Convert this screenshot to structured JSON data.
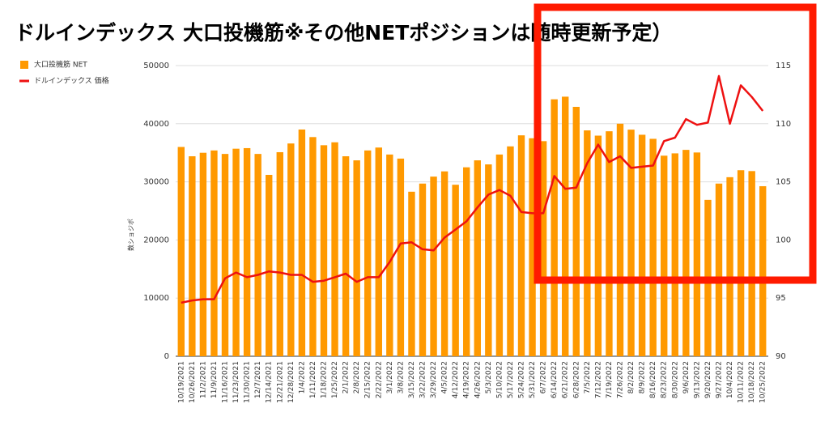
{
  "chart_data": {
    "type": "bar",
    "title": "ドルインデックス 大口投機筋※その他NETポジションは随時更新予定）",
    "y_label": "数ショジポ",
    "categories": [
      "10/19/2021",
      "10/26/2021",
      "11/2/2021",
      "11/9/2021",
      "11/16/2021",
      "11/23/2021",
      "11/30/2021",
      "12/7/2021",
      "12/14/2021",
      "12/21/2021",
      "12/28/2021",
      "1/4/2022",
      "1/11/2022",
      "1/18/2022",
      "1/25/2022",
      "2/1/2022",
      "2/8/2022",
      "2/15/2022",
      "2/22/2022",
      "3/1/2022",
      "3/8/2022",
      "3/15/2022",
      "3/22/2022",
      "3/29/2022",
      "4/5/2022",
      "4/12/2022",
      "4/19/2022",
      "4/26/2022",
      "5/3/2022",
      "5/10/2022",
      "5/17/2022",
      "5/24/2022",
      "5/31/2022",
      "6/7/2022",
      "6/14/2022",
      "6/21/2022",
      "6/28/2022",
      "7/5/2022",
      "7/12/2022",
      "7/19/2022",
      "7/26/2022",
      "8/2/2022",
      "8/9/2022",
      "8/16/2022",
      "8/23/2022",
      "8/30/2022",
      "9/6/2022",
      "9/13/2022",
      "9/20/2022",
      "9/27/2022",
      "10/4/2022",
      "10/11/2022",
      "10/18/2022",
      "10/25/2022"
    ],
    "series": [
      {
        "name": "大口投機筋  NET",
        "color": "#ff9900",
        "type": "bar",
        "values": [
          36000,
          34400,
          35000,
          35400,
          34800,
          35700,
          35800,
          34800,
          31200,
          35100,
          36600,
          39000,
          37700,
          36300,
          36800,
          34400,
          33700,
          35400,
          35900,
          34700,
          34000,
          28300,
          29700,
          30900,
          31800,
          29500,
          32500,
          33700,
          33000,
          34700,
          36100,
          38000,
          37500,
          37000,
          44200,
          44650,
          42900,
          38850,
          37950,
          38700,
          40000,
          38980,
          38100,
          37400,
          34500,
          34900,
          35500,
          35050,
          26900,
          29700,
          30800,
          32000,
          31850,
          29250
        ]
      },
      {
        "name": "ドルインデックス 価格",
        "color": "#ee1111",
        "type": "line",
        "axis": "y2",
        "values": [
          94.6,
          94.8,
          94.9,
          94.9,
          96.7,
          97.2,
          96.8,
          97.0,
          97.3,
          97.2,
          97.0,
          97.0,
          96.4,
          96.5,
          96.8,
          97.1,
          96.4,
          96.8,
          96.8,
          98.1,
          99.7,
          99.8,
          99.2,
          99.1,
          100.2,
          100.9,
          101.6,
          102.8,
          103.9,
          104.3,
          103.8,
          102.4,
          102.3,
          102.3,
          105.5,
          104.4,
          104.5,
          106.6,
          108.2,
          106.7,
          107.2,
          106.2,
          106.3,
          106.4,
          108.5,
          108.8,
          110.4,
          109.9,
          110.1,
          114.1,
          110.0,
          113.3,
          112.3,
          111.1
        ]
      }
    ],
    "ylim": [
      0,
      50000
    ],
    "yticks": [
      0,
      10000,
      20000,
      30000,
      40000,
      50000
    ],
    "y2lim": [
      90,
      115
    ],
    "y2ticks": [
      90,
      95,
      100,
      105,
      110,
      115
    ],
    "highlight_color": "#ff1a00"
  }
}
